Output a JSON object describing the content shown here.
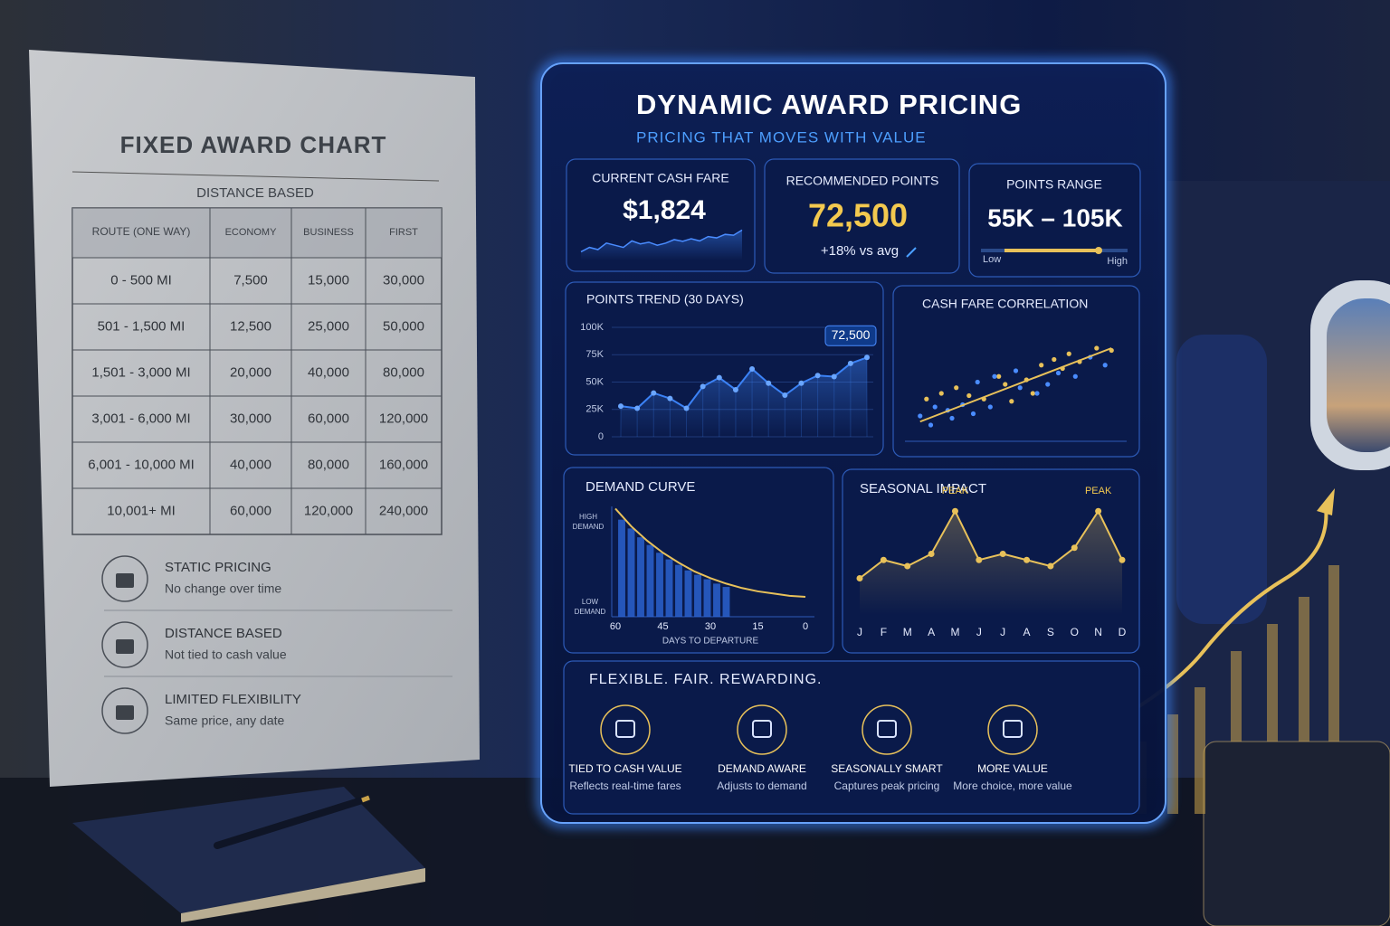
{
  "fixed_chart": {
    "title": "FIXED AWARD CHART",
    "subtitle": "DISTANCE BASED",
    "columns": [
      "ROUTE (ONE WAY)",
      "ECONOMY",
      "BUSINESS",
      "FIRST"
    ],
    "rows": [
      [
        "0 - 500 MI",
        "7,500",
        "15,000",
        "30,000"
      ],
      [
        "501 - 1,500 MI",
        "12,500",
        "25,000",
        "50,000"
      ],
      [
        "1,501 - 3,000 MI",
        "20,000",
        "40,000",
        "80,000"
      ],
      [
        "3,001 - 6,000 MI",
        "30,000",
        "60,000",
        "120,000"
      ],
      [
        "6,001 - 10,000 MI",
        "40,000",
        "80,000",
        "160,000"
      ],
      [
        "10,001+ MI",
        "60,000",
        "120,000",
        "240,000"
      ]
    ],
    "features": [
      {
        "title": "STATIC PRICING",
        "text": "No change over time"
      },
      {
        "title": "DISTANCE BASED",
        "text": "Not tied to cash value"
      },
      {
        "title": "LIMITED FLEXIBILITY",
        "text": "Same price, any date"
      }
    ]
  },
  "dashboard": {
    "title": "DYNAMIC AWARD PRICING",
    "subtitle": "PRICING THAT MOVES WITH VALUE",
    "cash_fare": {
      "label": "CURRENT CASH FARE",
      "value": "$1,824",
      "sparkline": [
        20,
        30,
        25,
        40,
        35,
        30,
        45,
        38,
        42,
        35,
        40,
        48,
        44,
        50,
        45,
        55,
        52,
        60,
        58,
        70
      ],
      "ylim": [
        0,
        100
      ]
    },
    "recommended_points": {
      "label": "RECOMMENDED POINTS",
      "value": "72,500",
      "change": "+18% vs avg"
    },
    "points_range": {
      "label": "POINTS RANGE",
      "value": "55K – 105K",
      "low": "Low",
      "high": "High"
    },
    "points_trend": {
      "type": "line",
      "title": "POINTS TREND (30 DAYS)",
      "color": "#3b82f6",
      "values": [
        28000,
        26000,
        40000,
        35000,
        26000,
        46000,
        54000,
        43000,
        62000,
        49000,
        38000,
        49000,
        56000,
        55000,
        67000,
        72500
      ],
      "ylim": [
        0,
        100000
      ],
      "yticks": [
        0,
        {
          "value": 25000,
          "label": "25K"
        },
        {
          "value": 50000,
          "label": "50K"
        },
        {
          "value": 75000,
          "label": "75K"
        },
        {
          "value": 100000,
          "label": "100K"
        }
      ],
      "grid": true,
      "annotation": "72,500"
    },
    "correlation": {
      "type": "scatter",
      "title": "CASH FARE CORRELATION",
      "xlim": [
        0,
        100
      ],
      "ylim": [
        0,
        100
      ],
      "series": [
        {
          "color": "#e8c15a",
          "x": [
            8,
            15,
            22,
            28,
            35,
            42,
            48,
            55,
            62,
            68,
            75,
            80,
            88,
            95,
            45,
            58,
            72
          ],
          "y": [
            35,
            40,
            45,
            38,
            35,
            55,
            33,
            52,
            65,
            70,
            75,
            68,
            80,
            78,
            48,
            40,
            62
          ]
        },
        {
          "color": "#4a8cff",
          "x": [
            5,
            10,
            12,
            18,
            20,
            25,
            30,
            32,
            38,
            40,
            50,
            52,
            60,
            65,
            70,
            78,
            85,
            92
          ],
          "y": [
            20,
            12,
            28,
            25,
            18,
            30,
            22,
            50,
            28,
            55,
            60,
            45,
            40,
            48,
            58,
            55,
            72,
            65
          ]
        }
      ],
      "trendline": {
        "color": "#e8c15a",
        "x": [
          5,
          95
        ],
        "y": [
          15,
          80
        ]
      }
    },
    "demand_curve": {
      "type": "bar",
      "title": "DEMAND CURVE",
      "high_label": "HIGH DEMAND",
      "low_label": "LOW DEMAND",
      "x_label": "DAYS TO DEPARTURE",
      "color": "#2f6be0",
      "curve_color": "#e8c15a",
      "xlim": [
        60,
        0
      ],
      "xticks": [
        60,
        45,
        30,
        15,
        0
      ],
      "ylim": [
        0,
        100
      ],
      "bars": {
        "x": [
          58,
          55,
          52,
          49,
          46,
          43,
          40,
          37,
          34,
          31,
          28,
          25
        ],
        "values": [
          88,
          80,
          72,
          65,
          58,
          52,
          47,
          42,
          38,
          34,
          30,
          27
        ]
      },
      "curve": {
        "x": [
          60,
          55,
          50,
          45,
          40,
          35,
          30,
          25,
          20,
          15,
          10,
          5,
          0
        ],
        "values": [
          98,
          82,
          69,
          58,
          49,
          41,
          35,
          30,
          26,
          23,
          21,
          19,
          18
        ]
      }
    },
    "seasonal": {
      "type": "line",
      "title": "SEASONAL IMPACT",
      "color": "#e8c15a",
      "peak_label": "PEAK",
      "categories": [
        "J",
        "F",
        "M",
        "A",
        "M",
        "J",
        "J",
        "A",
        "S",
        "O",
        "N",
        "D"
      ],
      "values": [
        30,
        45,
        40,
        50,
        85,
        45,
        50,
        45,
        40,
        55,
        85,
        45
      ],
      "ylim": [
        0,
        100
      ]
    },
    "tagline": "FLEXIBLE. FAIR. REWARDING.",
    "benefits": [
      {
        "title": "TIED TO CASH VALUE",
        "text": "Reflects real-time fares"
      },
      {
        "title": "DEMAND AWARE",
        "text": "Adjusts to demand"
      },
      {
        "title": "SEASONALLY SMART",
        "text": "Captures peak pricing"
      },
      {
        "title": "MORE VALUE",
        "text": "More choice, more value"
      }
    ]
  }
}
